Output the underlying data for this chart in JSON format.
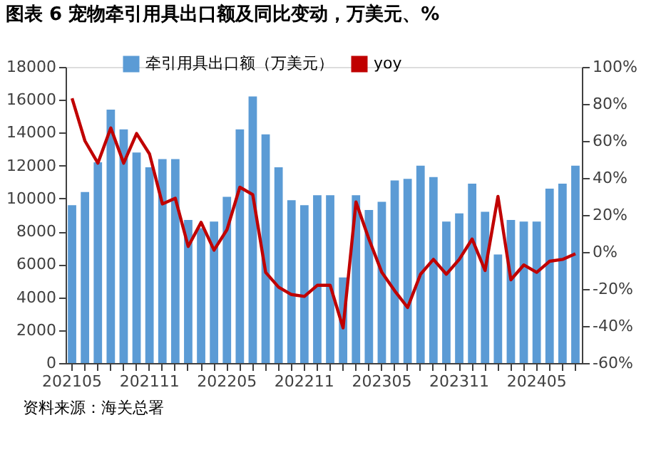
{
  "chart_data": {
    "type": "bar",
    "title": "图表 6 宠物牵引用具出口额及同比变动，万美元、%",
    "categories": [
      "202105",
      null,
      null,
      null,
      null,
      null,
      "202111",
      null,
      null,
      null,
      null,
      null,
      "202205",
      null,
      null,
      null,
      null,
      null,
      "202211",
      null,
      null,
      null,
      null,
      null,
      "202305",
      null,
      null,
      null,
      null,
      null,
      "202311",
      null,
      null,
      null,
      null,
      null,
      "202405",
      null,
      null,
      null
    ],
    "series": [
      {
        "name": "牵引用具出口额（万美元）",
        "color": "#5b9bd5",
        "values": [
          9600,
          10400,
          12200,
          15400,
          14200,
          12800,
          11900,
          12400,
          12400,
          8700,
          8200,
          8600,
          10100,
          14200,
          16200,
          13900,
          11900,
          9900,
          9600,
          10200,
          10200,
          5200,
          10200,
          9300,
          9800,
          11100,
          11200,
          12000,
          11300,
          8600,
          9100,
          10900,
          9200,
          6600,
          8700,
          8600,
          8600,
          10600,
          10900,
          12000
        ]
      },
      {
        "name": "yoy",
        "type": "line",
        "axis": "y2",
        "color": "#c00000",
        "values": [
          83,
          60,
          48,
          67,
          48,
          64,
          53,
          26,
          29,
          3,
          16,
          1,
          12,
          35,
          31,
          -11,
          -19,
          -23,
          -24,
          -18,
          -18,
          -41,
          27,
          7,
          -11,
          -21,
          -30,
          -12,
          -4,
          -12,
          -4,
          7,
          -10,
          30,
          -15,
          -7,
          -11,
          -5,
          -4,
          -1
        ]
      }
    ],
    "ylim": [
      0,
      18000
    ],
    "yticks": [
      0,
      2000,
      4000,
      6000,
      8000,
      10000,
      12000,
      14000,
      16000,
      18000
    ],
    "y2lim": [
      -60,
      100
    ],
    "y2ticks": [
      {
        "value": -60,
        "label": "-60%"
      },
      {
        "value": -40,
        "label": "-40%"
      },
      {
        "value": -20,
        "label": "-20%"
      },
      {
        "value": 0,
        "label": "0%"
      },
      {
        "value": 20,
        "label": "20%"
      },
      {
        "value": 40,
        "label": "40%"
      },
      {
        "value": 60,
        "label": "60%"
      },
      {
        "value": 80,
        "label": "80%"
      },
      {
        "value": 100,
        "label": "100%"
      }
    ],
    "legend": "top",
    "grid": false,
    "line_style": "solid",
    "marker": "none",
    "annotations": [
      "资料来源：海关总署"
    ]
  }
}
